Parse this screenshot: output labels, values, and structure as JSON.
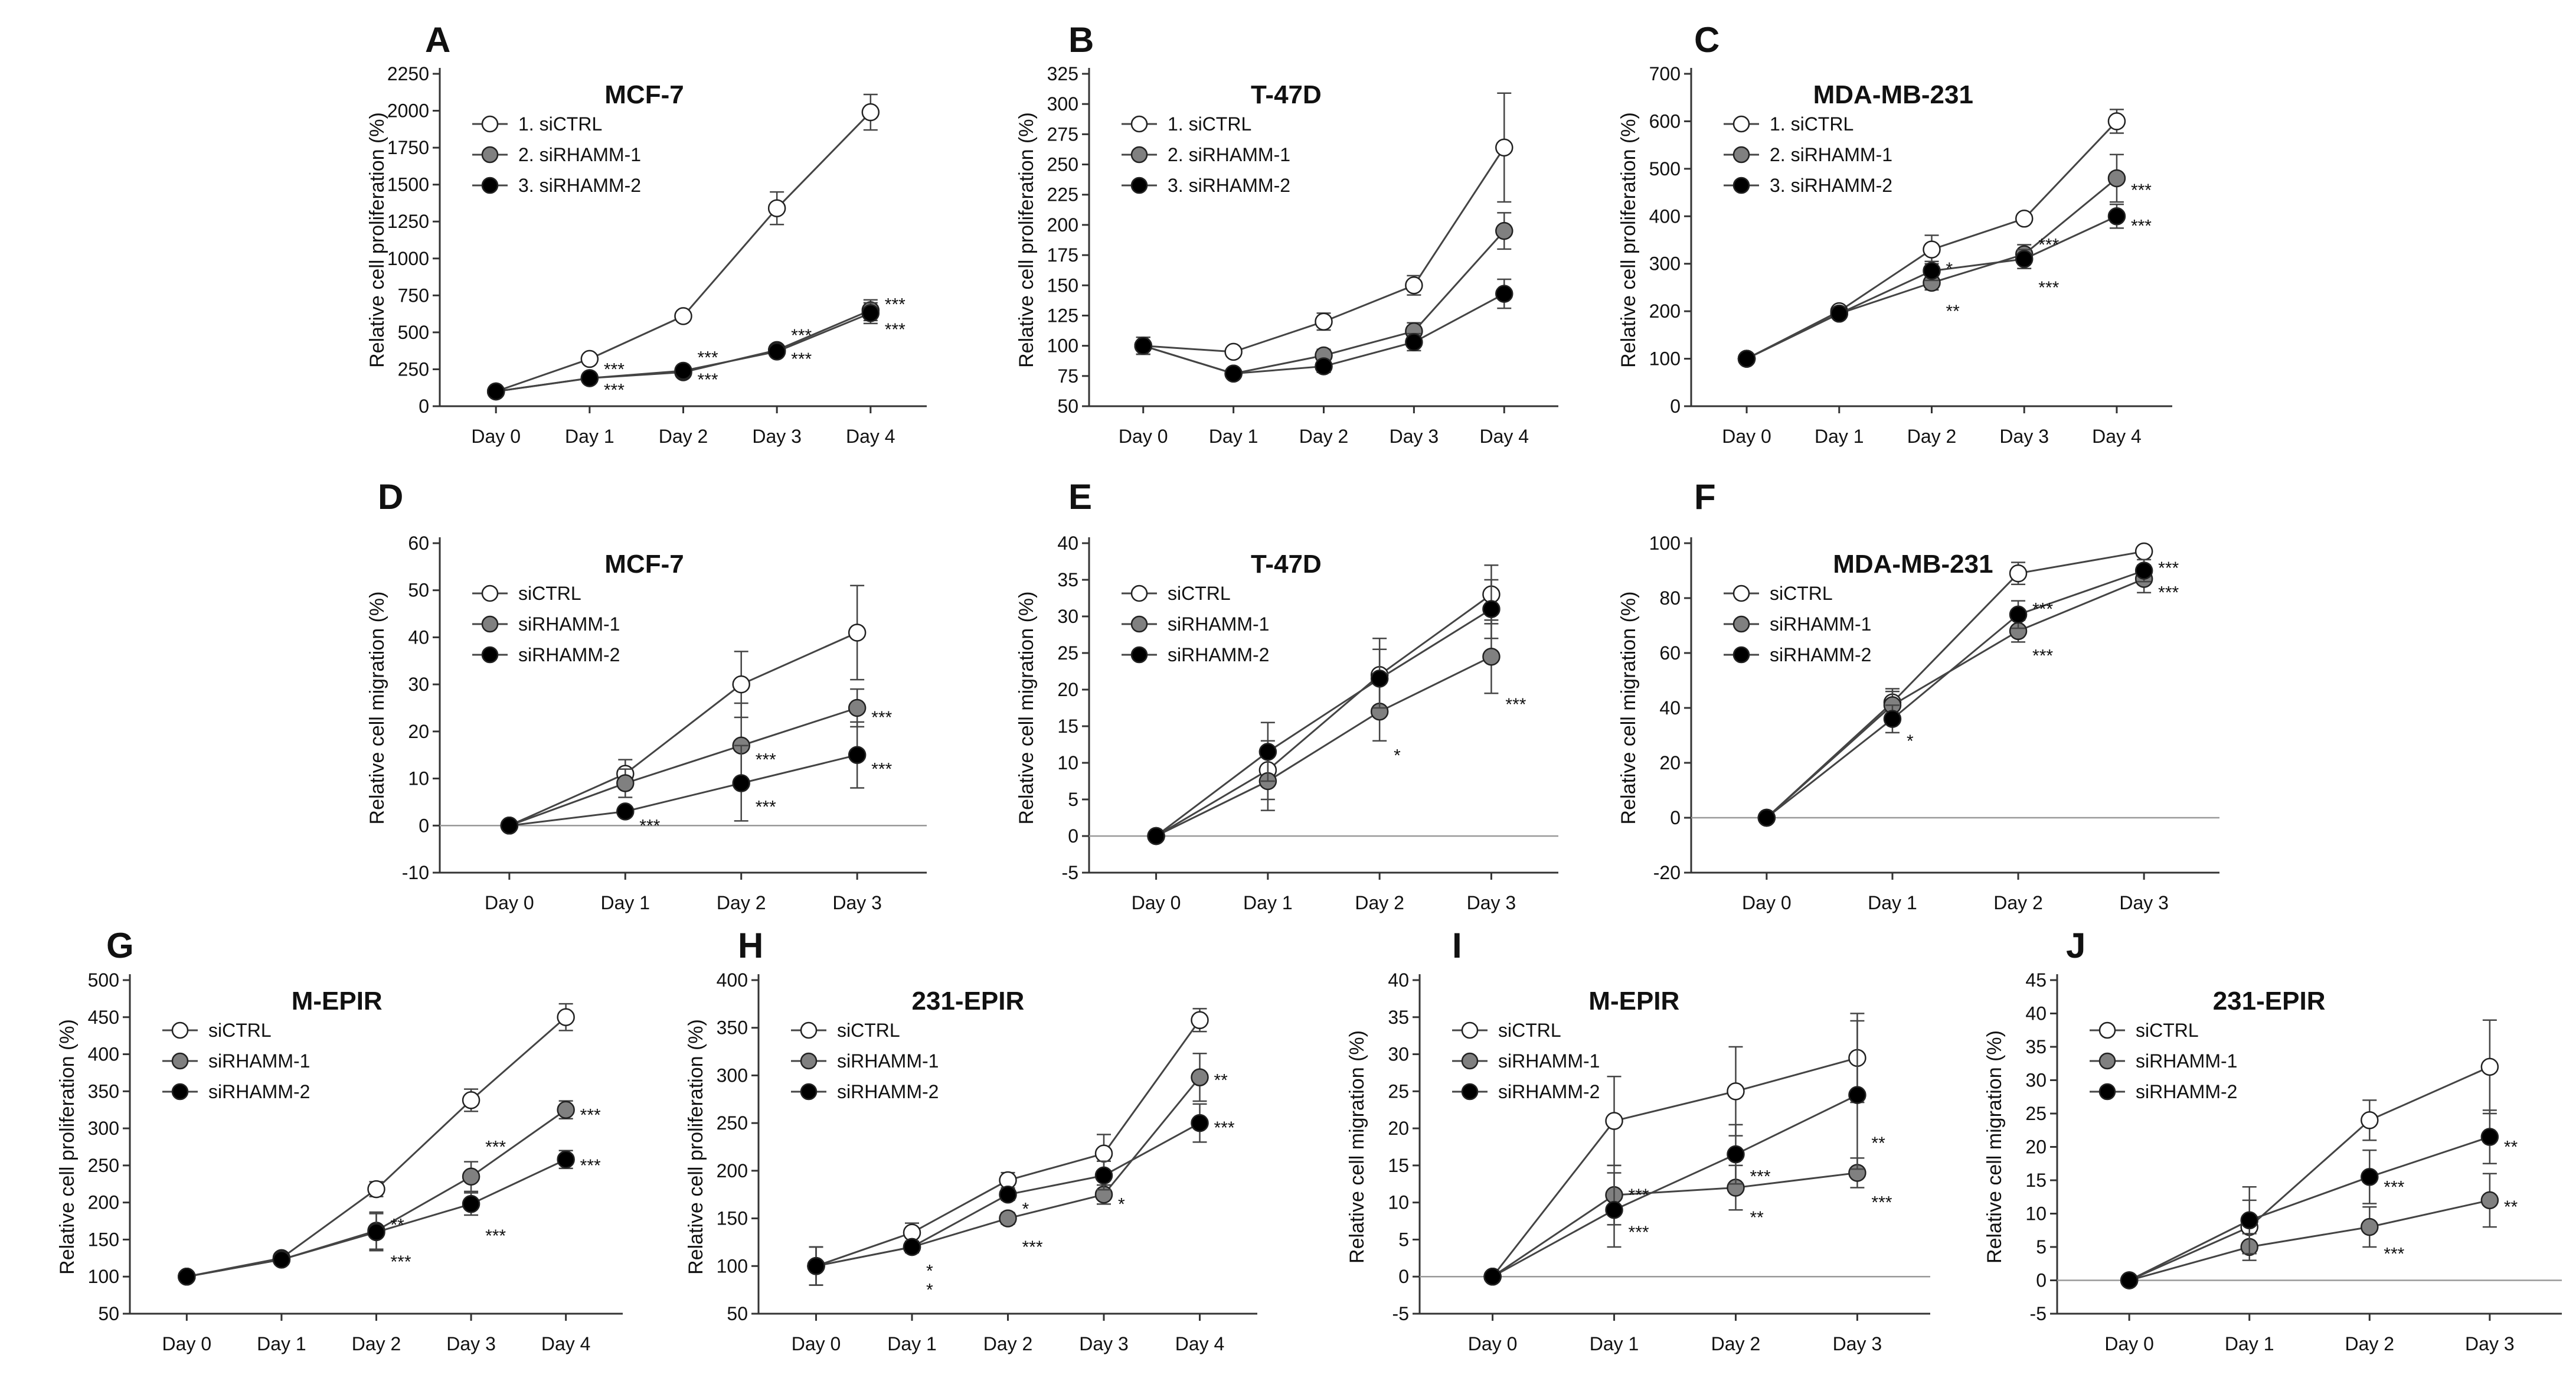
{
  "figure": {
    "colors": {
      "siCTRL": "#ffffff",
      "siRHAMM-1": "#808080",
      "siRHAMM-2": "#000000",
      "axis": "#333333",
      "line": "#444444"
    }
  },
  "chart_data": [
    {
      "panel": "A",
      "type": "line",
      "title": "MCF-7",
      "ylabel": "Relative cell proliferation (%)",
      "categories": [
        "Day 0",
        "Day 1",
        "Day 2",
        "Day 3",
        "Day 4"
      ],
      "ylim": [
        0,
        2250
      ],
      "yticks": [
        0,
        250,
        500,
        750,
        1000,
        1250,
        1500,
        1750,
        2000,
        2250
      ],
      "legend": {
        "position": "top-left",
        "labels": [
          "1. siCTRL",
          "2. siRHAMM-1",
          "3. siRHAMM-2"
        ]
      },
      "series": [
        {
          "name": "1. siCTRL",
          "key": "siCTRL",
          "values": [
            100,
            320,
            610,
            1340,
            1990
          ],
          "errors": [
            10,
            20,
            25,
            110,
            120
          ]
        },
        {
          "name": "2. siRHAMM-1",
          "key": "siRHAMM-1",
          "values": [
            100,
            190,
            230,
            380,
            650
          ],
          "errors": [
            10,
            15,
            20,
            30,
            70
          ]
        },
        {
          "name": "3. siRHAMM-2",
          "key": "siRHAMM-2",
          "values": [
            100,
            190,
            240,
            370,
            630
          ],
          "errors": [
            10,
            15,
            20,
            30,
            70
          ]
        }
      ],
      "annotations": [
        {
          "text": "***",
          "x": 1,
          "y": 250
        },
        {
          "text": "***",
          "x": 1,
          "y": 110
        },
        {
          "text": "***",
          "x": 2,
          "y": 330
        },
        {
          "text": "***",
          "x": 2,
          "y": 180
        },
        {
          "text": "***",
          "x": 3,
          "y": 480
        },
        {
          "text": "***",
          "x": 3,
          "y": 320
        },
        {
          "text": "***",
          "x": 4,
          "y": 690
        },
        {
          "text": "***",
          "x": 4,
          "y": 520
        }
      ]
    },
    {
      "panel": "B",
      "type": "line",
      "title": "T-47D",
      "ylabel": "Relative cell proliferation (%)",
      "categories": [
        "Day 0",
        "Day 1",
        "Day 2",
        "Day 3",
        "Day 4"
      ],
      "ylim": [
        50,
        325
      ],
      "yticks": [
        50,
        75,
        100,
        125,
        150,
        175,
        200,
        225,
        250,
        275,
        300,
        325
      ],
      "legend": {
        "position": "top-left",
        "labels": [
          "1. siCTRL",
          "2. siRHAMM-1",
          "3. siRHAMM-2"
        ]
      },
      "series": [
        {
          "name": "1. siCTRL",
          "key": "siCTRL",
          "values": [
            100,
            95,
            120,
            150,
            264
          ],
          "errors": [
            7,
            3,
            7,
            8,
            45
          ]
        },
        {
          "name": "2. siRHAMM-1",
          "key": "siRHAMM-1",
          "values": [
            100,
            77,
            92,
            112,
            195
          ],
          "errors": [
            7,
            3,
            5,
            7,
            15
          ]
        },
        {
          "name": "3. siRHAMM-2",
          "key": "siRHAMM-2",
          "values": [
            100,
            77,
            83,
            103,
            143
          ],
          "errors": [
            7,
            3,
            5,
            7,
            12
          ]
        }
      ],
      "annotations": []
    },
    {
      "panel": "C",
      "type": "line",
      "title": "MDA-MB-231",
      "ylabel": "Relative cell proliferation (%)",
      "categories": [
        "Day 0",
        "Day 1",
        "Day 2",
        "Day 3",
        "Day 4"
      ],
      "ylim": [
        0,
        700
      ],
      "yticks": [
        0,
        100,
        200,
        300,
        400,
        500,
        600,
        700
      ],
      "legend": {
        "position": "top-left",
        "labels": [
          "1. siCTRL",
          "2. siRHAMM-1",
          "3. siRHAMM-2"
        ]
      },
      "series": [
        {
          "name": "1. siCTRL",
          "key": "siCTRL",
          "values": [
            100,
            200,
            330,
            395,
            600
          ],
          "errors": [
            5,
            8,
            30,
            10,
            25
          ]
        },
        {
          "name": "2. siRHAMM-1",
          "key": "siRHAMM-1",
          "values": [
            100,
            195,
            260,
            320,
            480
          ],
          "errors": [
            5,
            8,
            15,
            20,
            50
          ]
        },
        {
          "name": "3. siRHAMM-2",
          "key": "siRHAMM-2",
          "values": [
            100,
            195,
            285,
            310,
            400
          ],
          "errors": [
            5,
            8,
            20,
            20,
            25
          ]
        }
      ],
      "annotations": [
        {
          "text": "*",
          "x": 2,
          "y": 290
        },
        {
          "text": "**",
          "x": 2,
          "y": 200
        },
        {
          "text": "***",
          "x": 3,
          "y": 340
        },
        {
          "text": "***",
          "x": 3,
          "y": 250
        },
        {
          "text": "***",
          "x": 4,
          "y": 455
        },
        {
          "text": "***",
          "x": 4,
          "y": 380
        }
      ]
    },
    {
      "panel": "D",
      "type": "line",
      "title": "MCF-7",
      "ylabel": "Relative cell migration (%)",
      "categories": [
        "Day 0",
        "Day 1",
        "Day 2",
        "Day 3"
      ],
      "ylim": [
        -10,
        60
      ],
      "yticks": [
        -10,
        0,
        10,
        20,
        30,
        40,
        50,
        60
      ],
      "zero_line": true,
      "legend": {
        "position": "top-left",
        "labels": [
          "siCTRL",
          "siRHAMM-1",
          "siRHAMM-2"
        ]
      },
      "series": [
        {
          "name": "siCTRL",
          "key": "siCTRL",
          "values": [
            0,
            11,
            30,
            41
          ],
          "errors": [
            0,
            3,
            7,
            10
          ]
        },
        {
          "name": "siRHAMM-1",
          "key": "siRHAMM-1",
          "values": [
            0,
            9,
            17,
            25
          ],
          "errors": [
            0,
            3,
            9,
            4
          ]
        },
        {
          "name": "siRHAMM-2",
          "key": "siRHAMM-2",
          "values": [
            0,
            3,
            9,
            15
          ],
          "errors": [
            0,
            1,
            8,
            7
          ]
        }
      ],
      "annotations": [
        {
          "text": "***",
          "x": 1,
          "y": 0
        },
        {
          "text": "***",
          "x": 2,
          "y": 14
        },
        {
          "text": "***",
          "x": 2,
          "y": 4
        },
        {
          "text": "***",
          "x": 3,
          "y": 23
        },
        {
          "text": "***",
          "x": 3,
          "y": 12
        }
      ]
    },
    {
      "panel": "E",
      "type": "line",
      "title": "T-47D",
      "ylabel": "Relative cell migration (%)",
      "categories": [
        "Day 0",
        "Day 1",
        "Day 2",
        "Day 3"
      ],
      "ylim": [
        -5,
        40
      ],
      "yticks": [
        -5,
        0,
        5,
        10,
        15,
        20,
        25,
        30,
        35,
        40
      ],
      "zero_line": true,
      "legend": {
        "position": "top-left",
        "labels": [
          "siCTRL",
          "siRHAMM-1",
          "siRHAMM-2"
        ]
      },
      "series": [
        {
          "name": "siCTRL",
          "key": "siCTRL",
          "values": [
            0,
            9,
            22,
            33
          ],
          "errors": [
            0,
            4,
            5,
            4
          ]
        },
        {
          "name": "siRHAMM-1",
          "key": "siRHAMM-1",
          "values": [
            0,
            7.5,
            17,
            24.5
          ],
          "errors": [
            0,
            4,
            4,
            5
          ]
        },
        {
          "name": "siRHAMM-2",
          "key": "siRHAMM-2",
          "values": [
            0,
            11.5,
            21.5,
            31
          ],
          "errors": [
            0,
            4,
            4,
            4
          ]
        }
      ],
      "annotations": [
        {
          "text": "*",
          "x": 2,
          "y": 11
        },
        {
          "text": "***",
          "x": 3,
          "y": 18
        }
      ]
    },
    {
      "panel": "F",
      "type": "line",
      "title": "MDA-MB-231",
      "ylabel": "Relative cell migration (%)",
      "categories": [
        "Day 0",
        "Day 1",
        "Day 2",
        "Day 3"
      ],
      "ylim": [
        -20,
        100
      ],
      "yticks": [
        -20,
        0,
        20,
        40,
        60,
        80,
        100
      ],
      "zero_line": true,
      "legend": {
        "position": "top-left",
        "labels": [
          "siCTRL",
          "siRHAMM-1",
          "siRHAMM-2"
        ]
      },
      "series": [
        {
          "name": "siCTRL",
          "key": "siCTRL",
          "values": [
            0,
            42,
            89,
            97
          ],
          "errors": [
            0,
            5,
            4,
            1
          ]
        },
        {
          "name": "siRHAMM-1",
          "key": "siRHAMM-1",
          "values": [
            0,
            41,
            68,
            87
          ],
          "errors": [
            0,
            5,
            4,
            5
          ]
        },
        {
          "name": "siRHAMM-2",
          "key": "siRHAMM-2",
          "values": [
            0,
            36,
            74,
            90
          ],
          "errors": [
            0,
            5,
            5,
            4
          ]
        }
      ],
      "annotations": [
        {
          "text": "*",
          "x": 1,
          "y": 28
        },
        {
          "text": "***",
          "x": 2,
          "y": 76
        },
        {
          "text": "***",
          "x": 2,
          "y": 59
        },
        {
          "text": "***",
          "x": 3,
          "y": 91
        },
        {
          "text": "***",
          "x": 3,
          "y": 82
        }
      ]
    },
    {
      "panel": "G",
      "type": "line",
      "title": "M-EPIR",
      "ylabel": "Relative cell proliferation (%)",
      "categories": [
        "Day 0",
        "Day 1",
        "Day 2",
        "Day 3",
        "Day 4"
      ],
      "ylim": [
        50,
        500
      ],
      "yticks": [
        50,
        100,
        150,
        200,
        250,
        300,
        350,
        400,
        450,
        500
      ],
      "legend": {
        "position": "top-left",
        "labels": [
          "siCTRL",
          "siRHAMM-1",
          "siRHAMM-2"
        ]
      },
      "series": [
        {
          "name": "siCTRL",
          "key": "siCTRL",
          "values": [
            100,
            125,
            218,
            338,
            450
          ],
          "errors": [
            3,
            5,
            10,
            15,
            18
          ]
        },
        {
          "name": "siRHAMM-1",
          "key": "siRHAMM-1",
          "values": [
            100,
            123,
            162,
            235,
            325
          ],
          "errors": [
            3,
            5,
            25,
            20,
            12
          ]
        },
        {
          "name": "siRHAMM-2",
          "key": "siRHAMM-2",
          "values": [
            100,
            123,
            160,
            198,
            258
          ],
          "errors": [
            3,
            5,
            25,
            15,
            12
          ]
        }
      ],
      "annotations": [
        {
          "text": "**",
          "x": 2,
          "y": 170
        },
        {
          "text": "***",
          "x": 2,
          "y": 120
        },
        {
          "text": "***",
          "x": 3,
          "y": 275
        },
        {
          "text": "***",
          "x": 3,
          "y": 155
        },
        {
          "text": "***",
          "x": 4,
          "y": 318
        },
        {
          "text": "***",
          "x": 4,
          "y": 250
        }
      ]
    },
    {
      "panel": "H",
      "type": "line",
      "title": "231-EPIR",
      "ylabel": "Relative cell proliferation (%)",
      "categories": [
        "Day 0",
        "Day 1",
        "Day 2",
        "Day 3",
        "Day 4"
      ],
      "ylim": [
        50,
        400
      ],
      "yticks": [
        50,
        100,
        150,
        200,
        250,
        300,
        350,
        400
      ],
      "legend": {
        "position": "top-left",
        "labels": [
          "siCTRL",
          "siRHAMM-1",
          "siRHAMM-2"
        ]
      },
      "series": [
        {
          "name": "siCTRL",
          "key": "siCTRL",
          "values": [
            100,
            135,
            190,
            218,
            358
          ],
          "errors": [
            20,
            10,
            8,
            20,
            12
          ]
        },
        {
          "name": "siRHAMM-1",
          "key": "siRHAMM-1",
          "values": [
            100,
            120,
            150,
            175,
            298
          ],
          "errors": [
            20,
            6,
            6,
            10,
            25
          ]
        },
        {
          "name": "siRHAMM-2",
          "key": "siRHAMM-2",
          "values": [
            100,
            120,
            175,
            195,
            250
          ],
          "errors": [
            20,
            6,
            6,
            15,
            20
          ]
        }
      ],
      "annotations": [
        {
          "text": "*",
          "x": 1,
          "y": 95
        },
        {
          "text": "*",
          "x": 1,
          "y": 75
        },
        {
          "text": "*",
          "x": 2,
          "y": 160
        },
        {
          "text": "***",
          "x": 2,
          "y": 120
        },
        {
          "text": "*",
          "x": 3,
          "y": 165
        },
        {
          "text": "**",
          "x": 4,
          "y": 295
        },
        {
          "text": "***",
          "x": 4,
          "y": 245
        }
      ]
    },
    {
      "panel": "I",
      "type": "line",
      "title": "M-EPIR",
      "ylabel": "Relative cell migration (%)",
      "categories": [
        "Day 0",
        "Day 1",
        "Day 2",
        "Day 3"
      ],
      "ylim": [
        -5,
        40
      ],
      "yticks": [
        -5,
        0,
        5,
        10,
        15,
        20,
        25,
        30,
        35,
        40
      ],
      "zero_line": true,
      "legend": {
        "position": "top-left",
        "labels": [
          "siCTRL",
          "siRHAMM-1",
          "siRHAMM-2"
        ]
      },
      "series": [
        {
          "name": "siCTRL",
          "key": "siCTRL",
          "values": [
            0,
            21,
            25,
            29.5
          ],
          "errors": [
            0,
            6,
            6,
            6
          ]
        },
        {
          "name": "siRHAMM-1",
          "key": "siRHAMM-1",
          "values": [
            0,
            11,
            12,
            14
          ],
          "errors": [
            0,
            4,
            3,
            2
          ]
        },
        {
          "name": "siRHAMM-2",
          "key": "siRHAMM-2",
          "values": [
            0,
            9,
            16.5,
            24.5
          ],
          "errors": [
            0,
            5,
            4,
            10
          ]
        }
      ],
      "annotations": [
        {
          "text": "***",
          "x": 1,
          "y": 11
        },
        {
          "text": "***",
          "x": 1,
          "y": 6
        },
        {
          "text": "***",
          "x": 2,
          "y": 13.5
        },
        {
          "text": "**",
          "x": 2,
          "y": 8
        },
        {
          "text": "**",
          "x": 3,
          "y": 18
        },
        {
          "text": "***",
          "x": 3,
          "y": 10
        }
      ]
    },
    {
      "panel": "J",
      "type": "line",
      "title": "231-EPIR",
      "ylabel": "Relative cell migration (%)",
      "categories": [
        "Day 0",
        "Day 1",
        "Day 2",
        "Day 3"
      ],
      "ylim": [
        -5,
        45
      ],
      "yticks": [
        -5,
        0,
        5,
        10,
        15,
        20,
        25,
        30,
        35,
        40,
        45
      ],
      "zero_line": true,
      "legend": {
        "position": "top-left",
        "labels": [
          "siCTRL",
          "siRHAMM-1",
          "siRHAMM-2"
        ]
      },
      "series": [
        {
          "name": "siCTRL",
          "key": "siCTRL",
          "values": [
            0,
            8,
            24,
            32
          ],
          "errors": [
            0,
            4,
            3,
            7
          ]
        },
        {
          "name": "siRHAMM-1",
          "key": "siRHAMM-1",
          "values": [
            0,
            5,
            8,
            12
          ],
          "errors": [
            0,
            2,
            3,
            4
          ]
        },
        {
          "name": "siRHAMM-2",
          "key": "siRHAMM-2",
          "values": [
            0,
            9,
            15.5,
            21.5
          ],
          "errors": [
            0,
            5,
            4,
            4
          ]
        }
      ],
      "annotations": [
        {
          "text": "***",
          "x": 2,
          "y": 14
        },
        {
          "text": "***",
          "x": 2,
          "y": 4
        },
        {
          "text": "**",
          "x": 3,
          "y": 20
        },
        {
          "text": "**",
          "x": 3,
          "y": 11
        }
      ]
    }
  ]
}
